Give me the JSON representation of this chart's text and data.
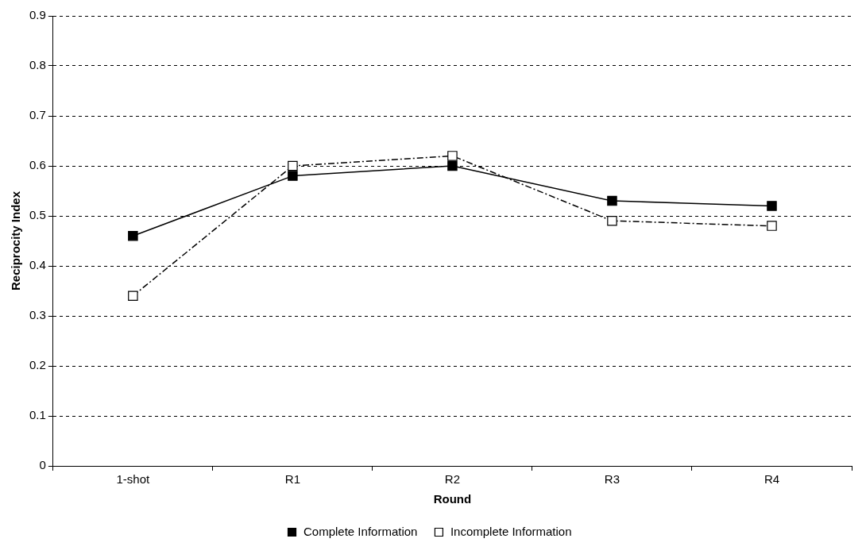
{
  "chart_data": {
    "type": "line",
    "xlabel": "Round",
    "ylabel": "Reciprocity Index",
    "categories": [
      "1-shot",
      "R1",
      "R2",
      "R3",
      "R4"
    ],
    "series": [
      {
        "name": "Complete Information",
        "color": "#000000",
        "values": [
          0.46,
          0.58,
          0.6,
          0.53,
          0.52
        ],
        "marker": "square",
        "line_style": "solid"
      },
      {
        "name": "Incomplete Information",
        "color": "#000000",
        "values": [
          0.34,
          0.6,
          0.62,
          0.49,
          0.48
        ],
        "marker": "square",
        "line_style": "dashed"
      }
    ],
    "ylim": [
      0,
      0.9
    ],
    "yticks": [
      0,
      0.1,
      0.2,
      0.3,
      0.4,
      0.5,
      0.6,
      0.7,
      0.8,
      0.9
    ],
    "grid": "y",
    "legend": "bottom"
  }
}
